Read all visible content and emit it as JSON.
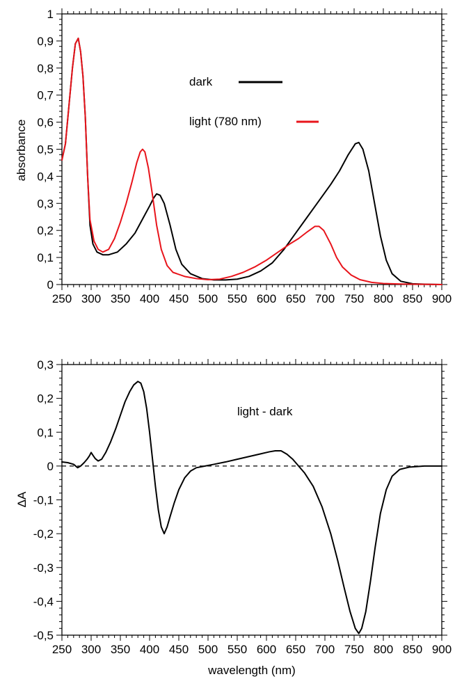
{
  "chart_data": [
    {
      "type": "line",
      "xlabel": "",
      "ylabel": "absorbance",
      "xlim": [
        250,
        900
      ],
      "ylim": [
        0,
        1
      ],
      "x_ticks": [
        "250",
        "300",
        "350",
        "400",
        "450",
        "500",
        "550",
        "600",
        "650",
        "700",
        "750",
        "800",
        "850",
        "900"
      ],
      "y_ticks": [
        "0",
        "0,1",
        "0,2",
        "0,3",
        "0,4",
        "0,5",
        "0,6",
        "0,7",
        "0,8",
        "0,9",
        "1"
      ],
      "legend_placement": "top-center",
      "series": [
        {
          "name": "dark",
          "color": "#000000",
          "points": [
            [
              250,
              0.46
            ],
            [
              256,
              0.52
            ],
            [
              262,
              0.66
            ],
            [
              268,
              0.8
            ],
            [
              273,
              0.89
            ],
            [
              278,
              0.91
            ],
            [
              282,
              0.86
            ],
            [
              286,
              0.77
            ],
            [
              290,
              0.62
            ],
            [
              294,
              0.4
            ],
            [
              298,
              0.22
            ],
            [
              303,
              0.15
            ],
            [
              310,
              0.12
            ],
            [
              320,
              0.11
            ],
            [
              330,
              0.11
            ],
            [
              345,
              0.12
            ],
            [
              360,
              0.15
            ],
            [
              375,
              0.19
            ],
            [
              390,
              0.25
            ],
            [
              400,
              0.29
            ],
            [
              407,
              0.32
            ],
            [
              412,
              0.335
            ],
            [
              418,
              0.33
            ],
            [
              425,
              0.3
            ],
            [
              435,
              0.22
            ],
            [
              445,
              0.13
            ],
            [
              455,
              0.075
            ],
            [
              470,
              0.04
            ],
            [
              490,
              0.022
            ],
            [
              510,
              0.017
            ],
            [
              530,
              0.017
            ],
            [
              550,
              0.02
            ],
            [
              570,
              0.03
            ],
            [
              590,
              0.05
            ],
            [
              610,
              0.08
            ],
            [
              630,
              0.13
            ],
            [
              650,
              0.19
            ],
            [
              670,
              0.25
            ],
            [
              690,
              0.31
            ],
            [
              710,
              0.37
            ],
            [
              725,
              0.42
            ],
            [
              740,
              0.48
            ],
            [
              752,
              0.52
            ],
            [
              758,
              0.525
            ],
            [
              765,
              0.5
            ],
            [
              775,
              0.42
            ],
            [
              785,
              0.3
            ],
            [
              795,
              0.18
            ],
            [
              805,
              0.09
            ],
            [
              815,
              0.04
            ],
            [
              830,
              0.012
            ],
            [
              850,
              0.003
            ],
            [
              875,
              0.001
            ],
            [
              900,
              0.0
            ]
          ]
        },
        {
          "name": "light (780 nm)",
          "color": "#e8141b",
          "points": [
            [
              250,
              0.46
            ],
            [
              256,
              0.52
            ],
            [
              262,
              0.66
            ],
            [
              268,
              0.8
            ],
            [
              273,
              0.89
            ],
            [
              278,
              0.91
            ],
            [
              282,
              0.86
            ],
            [
              286,
              0.77
            ],
            [
              290,
              0.62
            ],
            [
              294,
              0.4
            ],
            [
              298,
              0.24
            ],
            [
              305,
              0.16
            ],
            [
              312,
              0.13
            ],
            [
              320,
              0.12
            ],
            [
              330,
              0.13
            ],
            [
              340,
              0.17
            ],
            [
              350,
              0.23
            ],
            [
              360,
              0.3
            ],
            [
              370,
              0.38
            ],
            [
              378,
              0.45
            ],
            [
              384,
              0.49
            ],
            [
              388,
              0.5
            ],
            [
              392,
              0.49
            ],
            [
              398,
              0.43
            ],
            [
              405,
              0.33
            ],
            [
              412,
              0.22
            ],
            [
              420,
              0.13
            ],
            [
              430,
              0.07
            ],
            [
              440,
              0.045
            ],
            [
              460,
              0.03
            ],
            [
              480,
              0.022
            ],
            [
              500,
              0.018
            ],
            [
              520,
              0.02
            ],
            [
              540,
              0.03
            ],
            [
              560,
              0.045
            ],
            [
              580,
              0.065
            ],
            [
              600,
              0.09
            ],
            [
              620,
              0.12
            ],
            [
              640,
              0.15
            ],
            [
              655,
              0.17
            ],
            [
              670,
              0.195
            ],
            [
              683,
              0.215
            ],
            [
              690,
              0.215
            ],
            [
              698,
              0.2
            ],
            [
              710,
              0.15
            ],
            [
              720,
              0.1
            ],
            [
              730,
              0.065
            ],
            [
              745,
              0.035
            ],
            [
              760,
              0.018
            ],
            [
              780,
              0.008
            ],
            [
              800,
              0.004
            ],
            [
              830,
              0.002
            ],
            [
              870,
              0.001
            ],
            [
              900,
              0.0
            ]
          ]
        }
      ]
    },
    {
      "type": "line",
      "xlabel": "wavelength (nm)",
      "ylabel": "ΔA",
      "annotation": "light - dark",
      "annotation_color": "#1f1f4f",
      "xlim": [
        250,
        900
      ],
      "ylim": [
        -0.5,
        0.3
      ],
      "x_ticks": [
        "250",
        "300",
        "350",
        "400",
        "450",
        "500",
        "550",
        "600",
        "650",
        "700",
        "750",
        "800",
        "850",
        "900"
      ],
      "y_ticks": [
        "-0,5",
        "-0,4",
        "-0,3",
        "-0,2",
        "-0,1",
        "0",
        "0,1",
        "0,2",
        "0,3"
      ],
      "zero_line": "dashed",
      "series": [
        {
          "color": "#000000",
          "points": [
            [
              250,
              0.012
            ],
            [
              260,
              0.01
            ],
            [
              270,
              0.005
            ],
            [
              277,
              -0.005
            ],
            [
              282,
              0.0
            ],
            [
              288,
              0.01
            ],
            [
              293,
              0.02
            ],
            [
              297,
              0.03
            ],
            [
              300,
              0.04
            ],
            [
              303,
              0.032
            ],
            [
              307,
              0.022
            ],
            [
              312,
              0.015
            ],
            [
              318,
              0.02
            ],
            [
              325,
              0.04
            ],
            [
              333,
              0.07
            ],
            [
              342,
              0.11
            ],
            [
              350,
              0.15
            ],
            [
              358,
              0.19
            ],
            [
              366,
              0.22
            ],
            [
              373,
              0.24
            ],
            [
              380,
              0.25
            ],
            [
              385,
              0.245
            ],
            [
              390,
              0.22
            ],
            [
              395,
              0.17
            ],
            [
              400,
              0.1
            ],
            [
              405,
              0.02
            ],
            [
              410,
              -0.06
            ],
            [
              415,
              -0.13
            ],
            [
              420,
              -0.18
            ],
            [
              425,
              -0.2
            ],
            [
              430,
              -0.18
            ],
            [
              435,
              -0.15
            ],
            [
              442,
              -0.11
            ],
            [
              450,
              -0.07
            ],
            [
              460,
              -0.035
            ],
            [
              470,
              -0.015
            ],
            [
              480,
              -0.005
            ],
            [
              495,
              0.0
            ],
            [
              510,
              0.005
            ],
            [
              530,
              0.012
            ],
            [
              550,
              0.02
            ],
            [
              570,
              0.028
            ],
            [
              590,
              0.036
            ],
            [
              605,
              0.042
            ],
            [
              615,
              0.045
            ],
            [
              625,
              0.045
            ],
            [
              635,
              0.035
            ],
            [
              645,
              0.02
            ],
            [
              655,
              0.0
            ],
            [
              665,
              -0.02
            ],
            [
              680,
              -0.06
            ],
            [
              695,
              -0.12
            ],
            [
              710,
              -0.2
            ],
            [
              722,
              -0.28
            ],
            [
              733,
              -0.36
            ],
            [
              743,
              -0.43
            ],
            [
              752,
              -0.48
            ],
            [
              758,
              -0.495
            ],
            [
              763,
              -0.48
            ],
            [
              770,
              -0.43
            ],
            [
              778,
              -0.34
            ],
            [
              786,
              -0.24
            ],
            [
              795,
              -0.14
            ],
            [
              805,
              -0.07
            ],
            [
              815,
              -0.03
            ],
            [
              828,
              -0.01
            ],
            [
              845,
              -0.003
            ],
            [
              870,
              0.0
            ],
            [
              900,
              0.0
            ]
          ]
        }
      ]
    }
  ]
}
